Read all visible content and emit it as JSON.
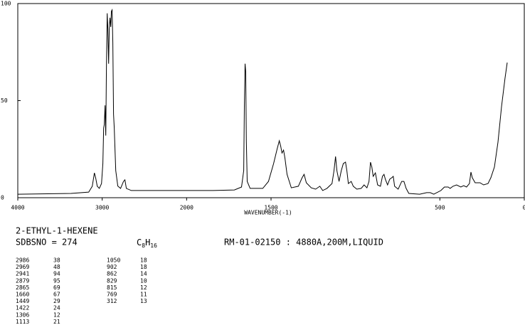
{
  "chart_data": {
    "type": "line",
    "x_label": "WAVENUMBER(-1)",
    "x": [
      4000,
      3370,
      3160,
      3118,
      3092,
      3076,
      3059,
      3034,
      3008,
      2992,
      2983,
      2975,
      2966,
      2958,
      2950,
      2941,
      2933,
      2924,
      2916,
      2908,
      2899,
      2891,
      2883,
      2874,
      2866,
      2857,
      2840,
      2815,
      2782,
      2748,
      2731,
      2714,
      2655,
      2277,
      2000,
      1844,
      1717,
      1675,
      1662,
      1658,
      1654,
      1650,
      1646,
      1641,
      1624,
      1549,
      1515,
      1485,
      1464,
      1451,
      1443,
      1435,
      1426,
      1418,
      1405,
      1380,
      1338,
      1316,
      1304,
      1291,
      1262,
      1236,
      1211,
      1194,
      1169,
      1139,
      1127,
      1118,
      1110,
      1097,
      1084,
      1072,
      1059,
      1051,
      1042,
      1025,
      1013,
      992,
      966,
      949,
      932,
      920,
      911,
      903,
      895,
      882,
      869,
      852,
      840,
      831,
      823,
      810,
      797,
      785,
      776,
      768,
      747,
      726,
      713,
      700,
      684,
      620,
      578,
      557,
      536,
      494,
      473,
      451,
      439,
      422,
      401,
      376,
      359,
      342,
      325,
      316,
      308,
      291,
      262,
      241,
      215,
      198,
      177,
      156,
      135,
      114,
      101
    ],
    "series": [
      {
        "color": "#000000",
        "values": [
          1.8,
          2.2,
          2.9,
          5.9,
          12.8,
          10,
          5.9,
          4.8,
          7.3,
          17.6,
          35.9,
          37.7,
          47.6,
          32,
          67,
          95,
          87,
          69,
          87,
          92.7,
          88,
          96,
          96.7,
          80,
          43,
          36,
          14,
          6,
          4.8,
          8.4,
          9.2,
          4.8,
          3.7,
          3.7,
          3.7,
          3.7,
          4,
          5.5,
          14,
          47,
          69,
          65,
          29,
          8.4,
          4.8,
          4.8,
          8.4,
          17.6,
          25,
          29.3,
          26.7,
          23,
          24.5,
          20.5,
          12,
          5.1,
          5.9,
          10.3,
          12,
          7.7,
          5.1,
          4.4,
          5.9,
          3.7,
          4.8,
          7.3,
          13.9,
          21.2,
          13.9,
          8.4,
          13.9,
          17.6,
          18.3,
          13.9,
          7.3,
          8.4,
          5.9,
          4.4,
          4.8,
          6.6,
          5.1,
          8.4,
          18.3,
          15.8,
          11,
          12.8,
          6.6,
          5.9,
          11,
          12,
          9.5,
          6.6,
          9.5,
          10.3,
          11,
          5.9,
          4.4,
          8.4,
          8.4,
          4.8,
          2.2,
          1.8,
          2.6,
          2.6,
          1.8,
          3.7,
          5.5,
          5.5,
          4.8,
          5.9,
          6.6,
          5.5,
          6.2,
          5.5,
          7.3,
          13.2,
          10.3,
          7.7,
          7.7,
          6.6,
          7.3,
          10.3,
          15.8,
          28.6,
          46.9,
          61.5,
          69.6
        ]
      }
    ],
    "xlim": [
      4000,
      0
    ],
    "x_scale_break": 2000,
    "xticks": [
      4000,
      3000,
      2000,
      1500,
      500,
      0
    ],
    "ylim": [
      0,
      100
    ],
    "yticks": [
      0,
      50,
      100
    ]
  },
  "compound": "2-ETHYL-1-HEXENE",
  "sdbs": "SDBSNO = 274",
  "formula": [
    "C",
    "8",
    "H",
    "16"
  ],
  "conditions": "RM-01-02150 : 4880A,200M,LIQUID",
  "peak_table": [
    [
      [
        "2986",
        "38"
      ],
      [
        "2969",
        "48"
      ],
      [
        "2941",
        "94"
      ],
      [
        "2879",
        "95"
      ],
      [
        "2865",
        "69"
      ],
      [
        "1660",
        "67"
      ],
      [
        "1449",
        "29"
      ],
      [
        "1422",
        "24"
      ],
      [
        "1306",
        "12"
      ],
      [
        "1113",
        "21"
      ]
    ],
    [
      [
        "1050",
        "18"
      ],
      [
        "902",
        "18"
      ],
      [
        "862",
        "14"
      ],
      [
        "829",
        "10"
      ],
      [
        "815",
        "12"
      ],
      [
        "769",
        "11"
      ],
      [
        "312",
        "13"
      ]
    ]
  ]
}
